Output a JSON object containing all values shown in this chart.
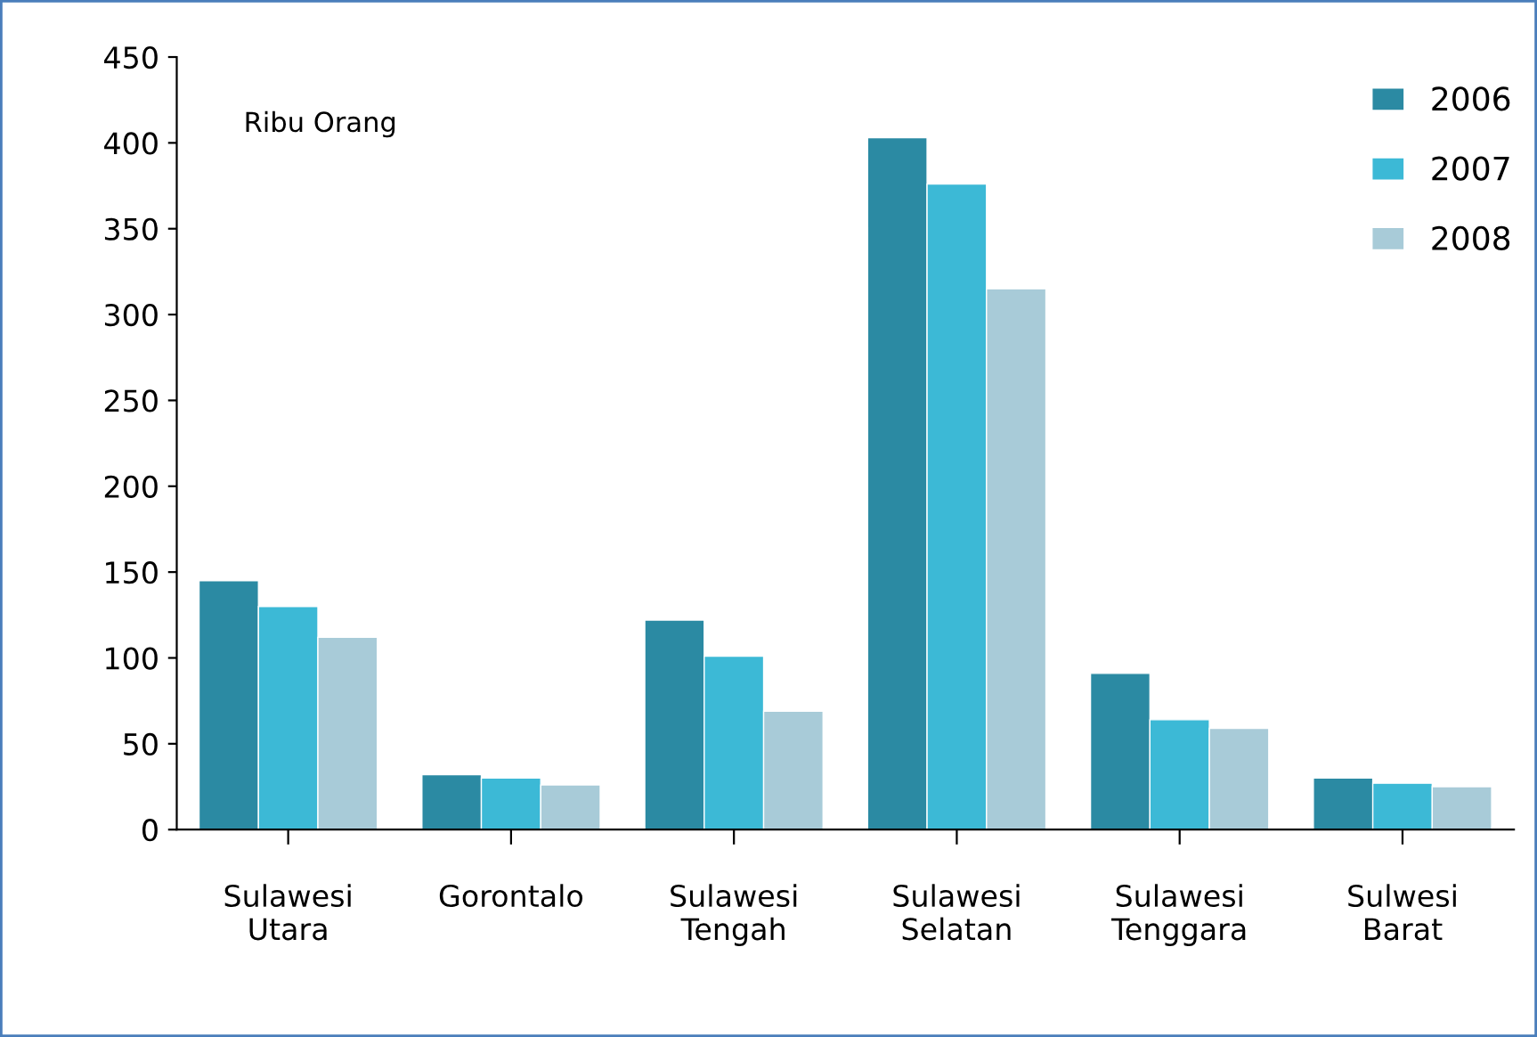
{
  "chart_data": {
    "type": "bar",
    "categories": [
      "Sulawesi\nUtara",
      "Gorontalo",
      "Sulawesi\nTengah",
      "Sulawesi\nSelatan",
      "Sulawesi\nTenggara",
      "Sulwesi\nBarat"
    ],
    "series": [
      {
        "name": "2006",
        "color": "#2b8aa3",
        "values": [
          145,
          32,
          122,
          403,
          91,
          30
        ]
      },
      {
        "name": "2007",
        "color": "#3cb9d6",
        "values": [
          130,
          30,
          101,
          376,
          64,
          27
        ]
      },
      {
        "name": "2008",
        "color": "#a8cbd8",
        "values": [
          112,
          26,
          69,
          315,
          59,
          25
        ]
      }
    ],
    "ylim": [
      0,
      450
    ],
    "yticks": [
      0,
      50,
      100,
      150,
      200,
      250,
      300,
      350,
      400,
      450
    ],
    "annotations": [
      "Ribu Orang"
    ],
    "legend": "top right",
    "grid": false
  }
}
